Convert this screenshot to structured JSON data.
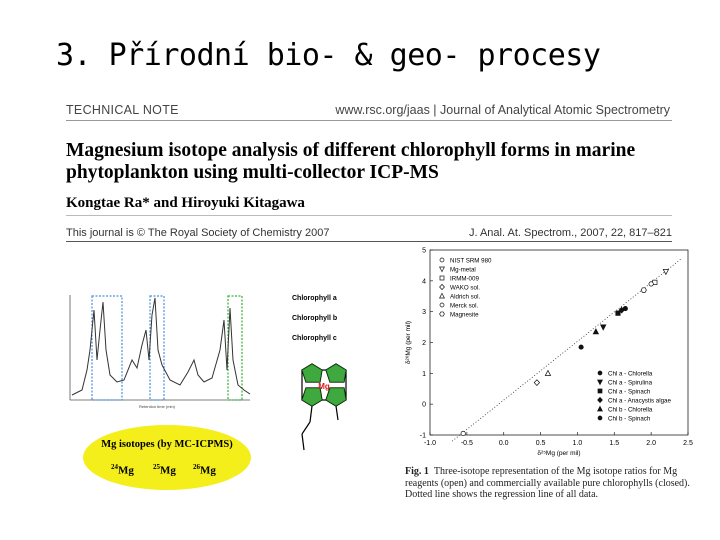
{
  "slide": {
    "title": "3.   Přírodní bio- & geo- procesy"
  },
  "paper": {
    "section": "TECHNICAL NOTE",
    "journal": "www.rsc.org/jaas | Journal of Analytical Atomic Spectrometry",
    "title_line1": "Magnesium isotope analysis of different chlorophyll forms in marine",
    "title_line2": "phytoplankton using multi-collector ICP-MS",
    "authors": "Kongtae Ra* and Hiroyuki Kitagawa",
    "copyright": "This journal is © The Royal Society of Chemistry 2007",
    "citation": "J. Anal. At. Spectrom., 2007, 22, 817–821"
  },
  "chlorophyll_panel": {
    "labels": [
      "Chlorophyll a",
      "Chlorophyll b",
      "Chlorophyll c"
    ],
    "center_atom": "Mg",
    "color": "#1e9b1e"
  },
  "mg_isotopes": {
    "title": "Mg isotopes (by MC-ICPMS)",
    "isotopes": [
      {
        "mass": "24",
        "symbol": "Mg"
      },
      {
        "mass": "25",
        "symbol": "Mg"
      },
      {
        "mass": "26",
        "symbol": "Mg"
      }
    ],
    "color": "#f4ee1a"
  },
  "figure": {
    "caption_label": "Fig. 1",
    "caption_text": "Three-isotope representation of the Mg isotope ratios for Mg reagents (open) and commercially available pure chlorophylls (closed). Dotted line shows the regression line of all data."
  },
  "chart_data": {
    "type": "scatter",
    "xlabel": "δ²⁵Mg (per mil)",
    "ylabel": "δ²⁶Mg (per mil)",
    "xlim": [
      -1.0,
      2.5
    ],
    "ylim": [
      -1,
      5
    ],
    "xticks": [
      "-1.0",
      "-0.5",
      "0.0",
      "0.5",
      "1.0",
      "1.5",
      "2.0",
      "2.5"
    ],
    "yticks": [
      "-1",
      "0",
      "1",
      "2",
      "3",
      "4",
      "5"
    ],
    "legend_open": [
      "NIST SRM 980",
      "Mg-metal",
      "IRMM-009",
      "WAKO sol.",
      "Aldrich sol.",
      "Merck sol.",
      "Magnesite"
    ],
    "legend_closed": [
      "Chl a - Chlorella",
      "Chl a - Spirulina",
      "Chl a - Spinach",
      "Chl a - Anacystis algae",
      "Chl b - Chlorella",
      "Chl b - Spinach"
    ],
    "series": [
      {
        "name": "NIST SRM 980",
        "marker": "circle-open",
        "points": [
          [
            -0.55,
            -0.95
          ]
        ]
      },
      {
        "name": "Mg-metal",
        "marker": "tri-down-open",
        "points": [
          [
            2.2,
            4.3
          ]
        ]
      },
      {
        "name": "IRMM-009",
        "marker": "square-open",
        "points": [
          [
            2.05,
            3.95
          ]
        ]
      },
      {
        "name": "WAKO sol.",
        "marker": "diamond-open",
        "points": [
          [
            0.45,
            0.7
          ]
        ]
      },
      {
        "name": "Aldrich sol.",
        "marker": "tri-up-open",
        "points": [
          [
            0.6,
            1.0
          ]
        ]
      },
      {
        "name": "Merck sol.",
        "marker": "circle-open",
        "points": [
          [
            2.0,
            3.9
          ]
        ]
      },
      {
        "name": "Magnesite",
        "marker": "hexagon-open",
        "points": [
          [
            1.9,
            3.7
          ]
        ]
      },
      {
        "name": "Chl a - Chlorella",
        "marker": "circle",
        "points": [
          [
            1.05,
            1.85
          ]
        ]
      },
      {
        "name": "Chl a - Spirulina",
        "marker": "tri-down",
        "points": [
          [
            1.35,
            2.5
          ]
        ]
      },
      {
        "name": "Chl a - Spinach",
        "marker": "square",
        "points": [
          [
            1.55,
            2.95
          ]
        ]
      },
      {
        "name": "Chl a - Anacystis algae",
        "marker": "diamond",
        "points": [
          [
            1.6,
            3.05
          ]
        ]
      },
      {
        "name": "Chl b - Chlorella",
        "marker": "tri-up",
        "points": [
          [
            1.25,
            2.35
          ]
        ]
      },
      {
        "name": "Chl b - Spinach",
        "marker": "circle",
        "points": [
          [
            1.65,
            3.1
          ]
        ]
      }
    ],
    "regression": {
      "style": "dotted",
      "points": [
        [
          -0.7,
          -1.2
        ],
        [
          2.4,
          4.7
        ]
      ]
    }
  }
}
